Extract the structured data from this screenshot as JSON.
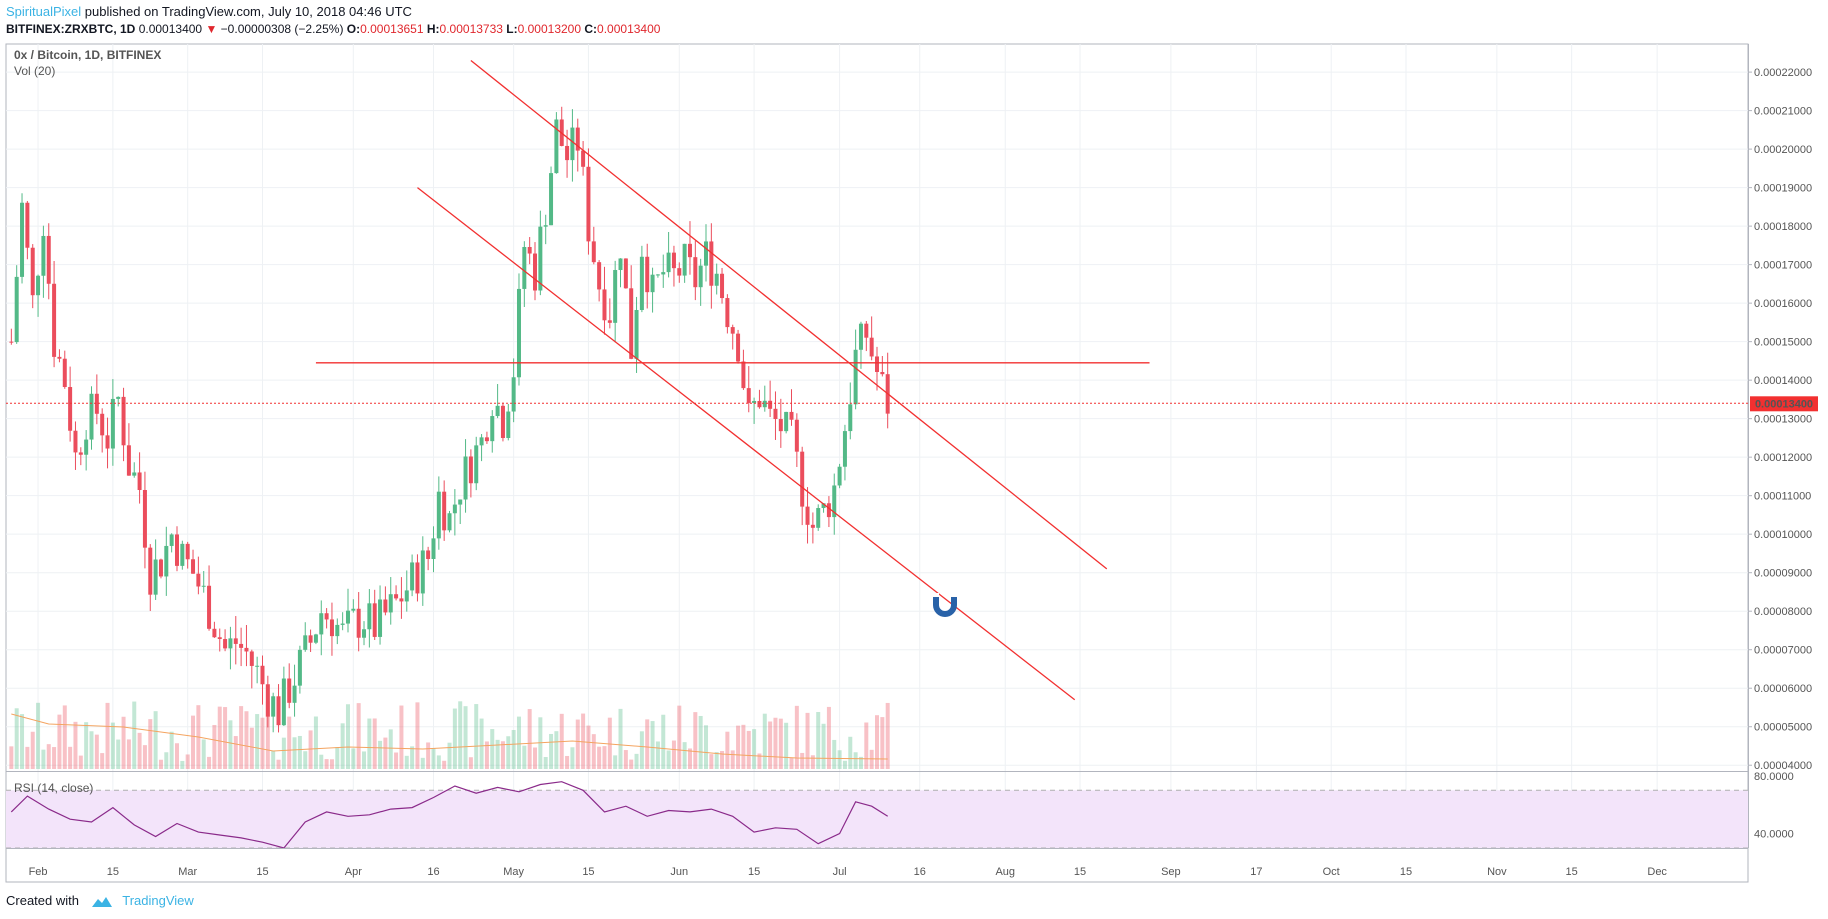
{
  "header": {
    "author": "SpiritualPixel",
    "published": "published on TradingView.com, July 10, 2018 04:46 UTC",
    "symbol": "BITFINEX:ZRXBTC, 1D",
    "last": "0.00013400",
    "change": "−0.00000308 (−2.25%)",
    "o_label": "O:",
    "o": "0.00013651",
    "h_label": "H:",
    "h": "0.00013733",
    "l_label": "L:",
    "l": "0.00013200",
    "c_label": "C:",
    "c": "0.00013400"
  },
  "panels": {
    "main_title": "0x / Bitcoin, 1D, BITFINEX",
    "vol_title": "Vol (20)",
    "rsi_title": "RSI (14, close)",
    "price_badge": "0.00013400"
  },
  "footer": {
    "created_with": "Created with",
    "brand": "TradingView"
  },
  "colors": {
    "up": "#53b987",
    "down": "#eb4d5c",
    "drawing": "#f23030",
    "ma": "#f4a460",
    "rsi": "#8a2a8a",
    "rsi_band": "#f3e4fa",
    "accent": "#3bb3e4"
  },
  "chart_data": {
    "type": "candlestick",
    "title": "0x / Bitcoin, 1D, BITFINEX",
    "price_axis": {
      "ticks": [
        "0.00022000",
        "0.00021000",
        "0.00020000",
        "0.00019000",
        "0.00018000",
        "0.00017000",
        "0.00016000",
        "0.00015000",
        "0.00014000",
        "0.00013000",
        "0.00012000",
        "0.00011000",
        "0.00010000",
        "0.00009000",
        "0.00008000",
        "0.00007000",
        "0.00006000",
        "0.00005000",
        "0.00004000"
      ],
      "range": [
        3.85e-05,
        0.000226
      ]
    },
    "rsi_axis": {
      "ticks": [
        "80.0000",
        "40.0000"
      ],
      "range": [
        30,
        82
      ],
      "band": [
        30,
        70
      ]
    },
    "time_axis": {
      "ticks": [
        {
          "label": "Feb",
          "date": "2018-02-01"
        },
        {
          "label": "15",
          "date": "2018-02-15"
        },
        {
          "label": "Mar",
          "date": "2018-03-01"
        },
        {
          "label": "15",
          "date": "2018-03-15"
        },
        {
          "label": "Apr",
          "date": "2018-04-01"
        },
        {
          "label": "16",
          "date": "2018-04-16"
        },
        {
          "label": "May",
          "date": "2018-05-01"
        },
        {
          "label": "15",
          "date": "2018-05-15"
        },
        {
          "label": "Jun",
          "date": "2018-06-01"
        },
        {
          "label": "15",
          "date": "2018-06-15"
        },
        {
          "label": "Jul",
          "date": "2018-07-01"
        },
        {
          "label": "16",
          "date": "2018-07-16"
        },
        {
          "label": "Aug",
          "date": "2018-08-01"
        },
        {
          "label": "15",
          "date": "2018-08-15"
        },
        {
          "label": "Sep",
          "date": "2018-09-01"
        },
        {
          "label": "17",
          "date": "2018-09-17"
        },
        {
          "label": "Oct",
          "date": "2018-10-01"
        },
        {
          "label": "15",
          "date": "2018-10-15"
        },
        {
          "label": "Nov",
          "date": "2018-11-01"
        },
        {
          "label": "15",
          "date": "2018-11-15"
        },
        {
          "label": "Dec",
          "date": "2018-12-01"
        }
      ],
      "range": [
        "2018-01-26",
        "2018-12-18"
      ]
    },
    "close_series": [
      [
        "2018-01-27",
        0.00015
      ],
      [
        "2018-01-29",
        0.000185
      ],
      [
        "2018-01-31",
        0.00016
      ],
      [
        "2018-02-02",
        0.000182
      ],
      [
        "2018-02-04",
        0.00015
      ],
      [
        "2018-02-06",
        0.00014
      ],
      [
        "2018-02-08",
        0.00012
      ],
      [
        "2018-02-10",
        0.00013
      ],
      [
        "2018-02-12",
        0.000132
      ],
      [
        "2018-02-14",
        0.000125
      ],
      [
        "2018-02-16",
        0.000135
      ],
      [
        "2018-02-18",
        0.000118
      ],
      [
        "2018-02-20",
        0.000112
      ],
      [
        "2018-02-22",
        9e-05
      ],
      [
        "2018-02-24",
        9.3e-05
      ],
      [
        "2018-02-26",
        0.0001
      ],
      [
        "2018-02-28",
        9.4e-05
      ],
      [
        "2018-03-02",
        9e-05
      ],
      [
        "2018-03-04",
        8.4e-05
      ],
      [
        "2018-03-06",
        7.7e-05
      ],
      [
        "2018-03-08",
        7e-05
      ],
      [
        "2018-03-10",
        7.2e-05
      ],
      [
        "2018-03-12",
        6.9e-05
      ],
      [
        "2018-03-14",
        6.4e-05
      ],
      [
        "2018-03-16",
        5.8e-05
      ],
      [
        "2018-03-18",
        5.4e-05
      ],
      [
        "2018-03-20",
        6e-05
      ],
      [
        "2018-03-22",
        6.6e-05
      ],
      [
        "2018-03-24",
        7.2e-05
      ],
      [
        "2018-03-26",
        8e-05
      ],
      [
        "2018-03-28",
        7.8e-05
      ],
      [
        "2018-03-30",
        7.4e-05
      ],
      [
        "2018-04-01",
        7.7e-05
      ],
      [
        "2018-04-03",
        7.8e-05
      ],
      [
        "2018-04-05",
        7.6e-05
      ],
      [
        "2018-04-07",
        7.9e-05
      ],
      [
        "2018-04-09",
        8.2e-05
      ],
      [
        "2018-04-11",
        8.6e-05
      ],
      [
        "2018-04-13",
        9e-05
      ],
      [
        "2018-04-15",
        9.4e-05
      ],
      [
        "2018-04-17",
        0.00011
      ],
      [
        "2018-04-19",
        0.000104
      ],
      [
        "2018-04-21",
        0.000113
      ],
      [
        "2018-04-23",
        0.000119
      ],
      [
        "2018-04-25",
        0.000124
      ],
      [
        "2018-04-27",
        0.000136
      ],
      [
        "2018-04-29",
        0.00013
      ],
      [
        "2018-05-01",
        0.000143
      ],
      [
        "2018-05-03",
        0.000175
      ],
      [
        "2018-05-05",
        0.000168
      ],
      [
        "2018-05-07",
        0.000185
      ],
      [
        "2018-05-09",
        0.000205
      ],
      [
        "2018-05-11",
        0.000198
      ],
      [
        "2018-05-13",
        0.000202
      ],
      [
        "2018-05-15",
        0.00018
      ],
      [
        "2018-05-17",
        0.000165
      ],
      [
        "2018-05-19",
        0.000158
      ],
      [
        "2018-05-21",
        0.000176
      ],
      [
        "2018-05-23",
        0.000148
      ],
      [
        "2018-05-25",
        0.000175
      ],
      [
        "2018-05-27",
        0.000162
      ],
      [
        "2018-05-29",
        0.000168
      ],
      [
        "2018-05-31",
        0.000167
      ],
      [
        "2018-06-02",
        0.00017
      ],
      [
        "2018-06-04",
        0.000166
      ],
      [
        "2018-06-06",
        0.000172
      ],
      [
        "2018-06-08",
        0.000168
      ],
      [
        "2018-06-10",
        0.000158
      ],
      [
        "2018-06-12",
        0.00015
      ],
      [
        "2018-06-14",
        0.00013
      ],
      [
        "2018-06-16",
        0.000136
      ],
      [
        "2018-06-18",
        0.00013
      ],
      [
        "2018-06-20",
        0.000128
      ],
      [
        "2018-06-22",
        0.000124
      ],
      [
        "2018-06-24",
        0.000112
      ],
      [
        "2018-06-26",
        0.000102
      ],
      [
        "2018-06-28",
        0.000106
      ],
      [
        "2018-06-30",
        0.000112
      ],
      [
        "2018-07-02",
        0.000128
      ],
      [
        "2018-07-04",
        0.000146
      ],
      [
        "2018-07-06",
        0.000152
      ],
      [
        "2018-07-08",
        0.000142
      ],
      [
        "2018-07-10",
        0.000134
      ]
    ],
    "rsi_series": [
      [
        "2018-01-27",
        55
      ],
      [
        "2018-01-30",
        66
      ],
      [
        "2018-02-03",
        57
      ],
      [
        "2018-02-07",
        50
      ],
      [
        "2018-02-11",
        48
      ],
      [
        "2018-02-15",
        58
      ],
      [
        "2018-02-19",
        46
      ],
      [
        "2018-02-23",
        38
      ],
      [
        "2018-02-27",
        47
      ],
      [
        "2018-03-03",
        41
      ],
      [
        "2018-03-07",
        39
      ],
      [
        "2018-03-11",
        37
      ],
      [
        "2018-03-15",
        34
      ],
      [
        "2018-03-19",
        30
      ],
      [
        "2018-03-23",
        48
      ],
      [
        "2018-03-27",
        55
      ],
      [
        "2018-03-31",
        52
      ],
      [
        "2018-04-04",
        53
      ],
      [
        "2018-04-08",
        57
      ],
      [
        "2018-04-12",
        58
      ],
      [
        "2018-04-16",
        65
      ],
      [
        "2018-04-20",
        73
      ],
      [
        "2018-04-24",
        68
      ],
      [
        "2018-04-28",
        72
      ],
      [
        "2018-05-02",
        69
      ],
      [
        "2018-05-06",
        74
      ],
      [
        "2018-05-10",
        76
      ],
      [
        "2018-05-14",
        70
      ],
      [
        "2018-05-18",
        55
      ],
      [
        "2018-05-22",
        59
      ],
      [
        "2018-05-26",
        52
      ],
      [
        "2018-05-30",
        56
      ],
      [
        "2018-06-03",
        55
      ],
      [
        "2018-06-07",
        57
      ],
      [
        "2018-06-11",
        52
      ],
      [
        "2018-06-15",
        41
      ],
      [
        "2018-06-19",
        44
      ],
      [
        "2018-06-23",
        43
      ],
      [
        "2018-06-27",
        33
      ],
      [
        "2018-07-01",
        40
      ],
      [
        "2018-07-04",
        62
      ],
      [
        "2018-07-07",
        59
      ],
      [
        "2018-07-10",
        52
      ]
    ],
    "volume_ma_series": [
      [
        "2018-01-27",
        0.55
      ],
      [
        "2018-02-03",
        0.45
      ],
      [
        "2018-02-17",
        0.42
      ],
      [
        "2018-03-03",
        0.32
      ],
      [
        "2018-03-17",
        0.18
      ],
      [
        "2018-03-31",
        0.22
      ],
      [
        "2018-04-14",
        0.2
      ],
      [
        "2018-04-28",
        0.24
      ],
      [
        "2018-05-12",
        0.28
      ],
      [
        "2018-05-26",
        0.22
      ],
      [
        "2018-06-09",
        0.15
      ],
      [
        "2018-06-23",
        0.11
      ],
      [
        "2018-07-10",
        0.1
      ]
    ],
    "drawings": [
      {
        "name": "channel-upper-line",
        "from": [
          "2018-04-23",
          0.000223
        ],
        "to": [
          "2018-08-20",
          9.1e-05
        ]
      },
      {
        "name": "channel-lower-line",
        "from": [
          "2018-04-13",
          0.00019
        ],
        "to": [
          "2018-08-14",
          5.7e-05
        ]
      },
      {
        "name": "horizontal-support-line",
        "from": [
          "2018-03-25",
          0.0001445
        ],
        "to": [
          "2018-08-28",
          0.0001445
        ]
      }
    ]
  }
}
